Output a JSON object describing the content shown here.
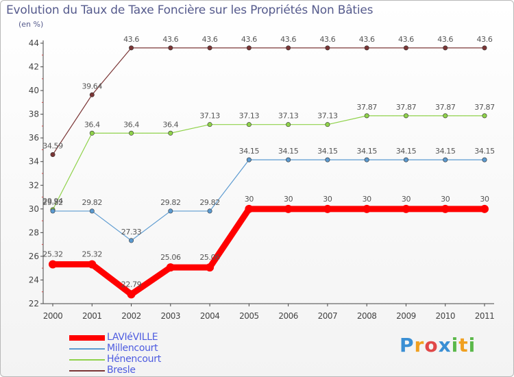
{
  "title": "Evolution du Taux de Taxe Foncière sur les Propriétés Non Bâties",
  "unit_label": "(en %)",
  "logo": {
    "letters": [
      {
        "char": "P",
        "color": "#3a8fd4"
      },
      {
        "char": "r",
        "color": "#f0a020"
      },
      {
        "char": "o",
        "color": "#e04848"
      },
      {
        "char": "x",
        "color": "#3a8fd4"
      },
      {
        "char": "i",
        "color": "#5bb84a"
      },
      {
        "char": "t",
        "color": "#f0a020"
      },
      {
        "char": "i",
        "color": "#5bb84a"
      }
    ]
  },
  "chart_data": {
    "type": "line",
    "title": "Evolution du Taux de Taxe Foncière sur les Propriétés Non Bâties",
    "ylabel": "(en %)",
    "xlabel": "",
    "x": [
      "2000",
      "2001",
      "2002",
      "2003",
      "2004",
      "2005",
      "2006",
      "2007",
      "2008",
      "2009",
      "2010",
      "2011"
    ],
    "ylim": [
      22,
      44
    ],
    "yticks": [
      22,
      24,
      26,
      28,
      30,
      32,
      34,
      36,
      38,
      40,
      42,
      44
    ],
    "grid": false,
    "legend_position": "bottom-left",
    "series": [
      {
        "name": "LAVIéVILLE",
        "color": "#ff0000",
        "emphasis": true,
        "values": [
          25.32,
          25.32,
          22.79,
          25.06,
          25.06,
          30,
          30,
          30,
          30,
          30,
          30,
          30
        ],
        "labels": [
          "25.32",
          "25.32",
          "22.79",
          "25.06",
          "25.06",
          "30",
          "30",
          "30",
          "30",
          "30",
          "30",
          "30"
        ]
      },
      {
        "name": "Millencourt",
        "color": "#5b9ad0",
        "emphasis": false,
        "values": [
          29.82,
          29.82,
          27.33,
          29.82,
          29.82,
          34.15,
          34.15,
          34.15,
          34.15,
          34.15,
          34.15,
          34.15
        ],
        "labels": [
          "29.82",
          "29.82",
          "27.33",
          "29.82",
          "29.82",
          "34.15",
          "34.15",
          "34.15",
          "34.15",
          "34.15",
          "34.15",
          "34.15"
        ]
      },
      {
        "name": "Hénencourt",
        "color": "#8fd24a",
        "emphasis": false,
        "values": [
          29.94,
          36.4,
          36.4,
          36.4,
          37.13,
          37.13,
          37.13,
          37.13,
          37.87,
          37.87,
          37.87,
          37.87
        ],
        "labels": [
          "29.94",
          "36.4",
          "36.4",
          "36.4",
          "37.13",
          "37.13",
          "37.13",
          "37.13",
          "37.87",
          "37.87",
          "37.87",
          "37.87"
        ]
      },
      {
        "name": "Bresle",
        "color": "#7a3535",
        "emphasis": false,
        "values": [
          34.59,
          39.64,
          43.6,
          43.6,
          43.6,
          43.6,
          43.6,
          43.6,
          43.6,
          43.6,
          43.6,
          43.6
        ],
        "labels": [
          "34.59",
          "39.64",
          "43.6",
          "43.6",
          "43.6",
          "43.6",
          "43.6",
          "43.6",
          "43.6",
          "43.6",
          "43.6",
          "43.6"
        ]
      }
    ]
  }
}
